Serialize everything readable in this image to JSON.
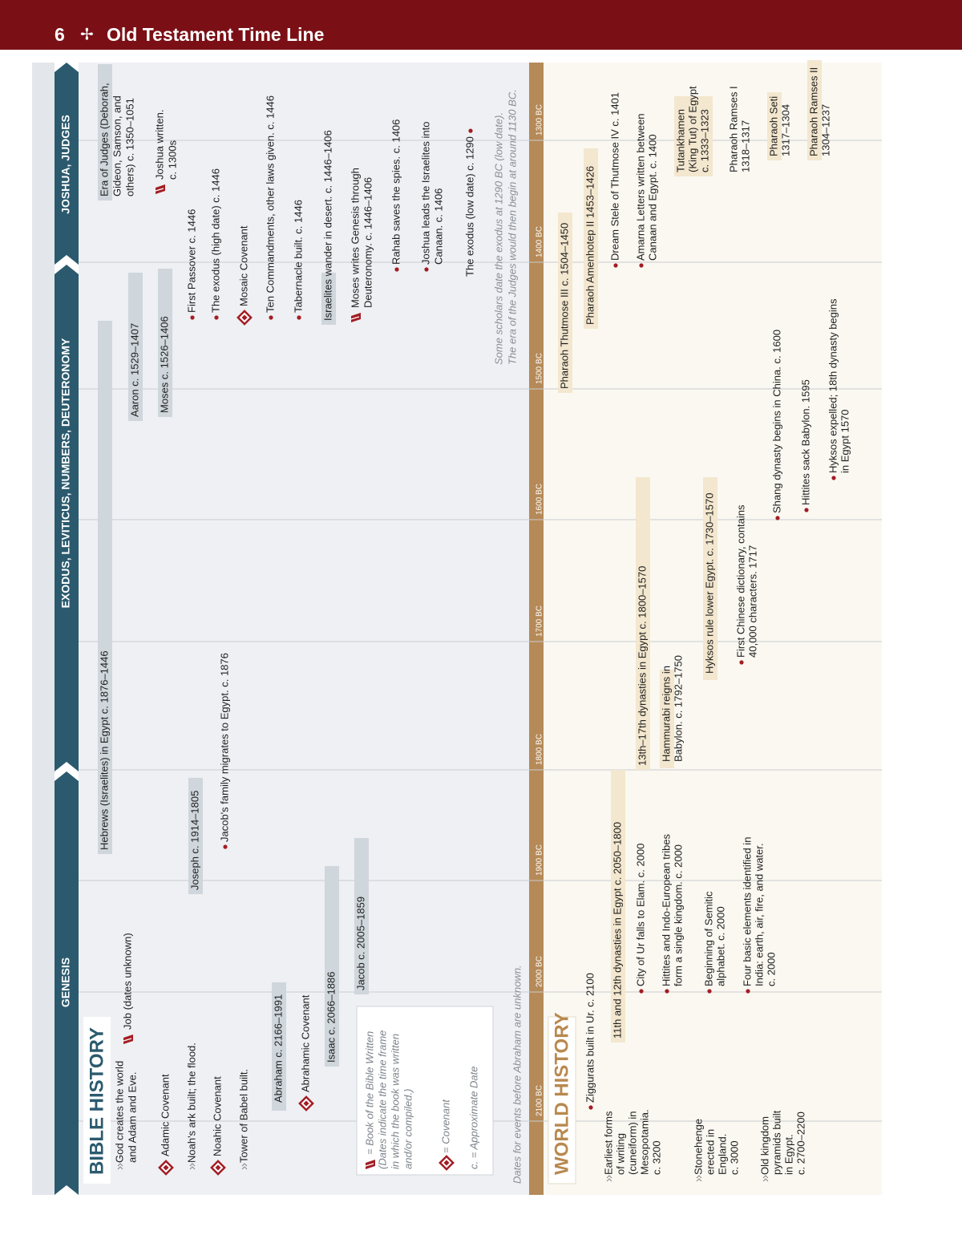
{
  "header": {
    "page": "6",
    "separator": "✢",
    "title": "Old Testament Time Line"
  },
  "books": [
    "GENESIS",
    "EXODUS, LEVITICUS, NUMBERS, DEUTERONOMY",
    "JOSHUA, JUDGES"
  ],
  "axis": [
    "2100 BC",
    "2000 BC",
    "1900 BC",
    "1800 BC",
    "1700 BC",
    "1600 BC",
    "1500 BC",
    "1400 BC",
    "1300 BC"
  ],
  "bible_history": {
    "title": "BIBLE HISTORY",
    "events": [
      {
        "text": [
          "God creates the world",
          "and Adam and Eve."
        ]
      },
      {
        "text": [
          "Adamic Covenant"
        ]
      },
      {
        "text": [
          "Noah's ark built; the flood."
        ]
      },
      {
        "text": [
          "Noahic Covenant"
        ]
      },
      {
        "text": [
          "Tower of Babel built."
        ]
      },
      {
        "text": [
          "Job (dates unknown)"
        ]
      },
      {
        "text": [
          "Abraham c. 2166–1991"
        ]
      },
      {
        "text": [
          "Abrahamic Covenant"
        ]
      },
      {
        "text": [
          "Isaac c. 2066–1886"
        ]
      },
      {
        "text": [
          "Jacob c. 2005–1859"
        ]
      },
      {
        "text": [
          "Joseph c. 1914–1805"
        ]
      },
      {
        "text": [
          "Jacob's family migrates to Egypt. c. 1876"
        ]
      },
      {
        "text": [
          "Hebrews (Israelites) in Egypt c. 1876–1446"
        ]
      },
      {
        "text": [
          "Aaron c. 1529–1407"
        ]
      },
      {
        "text": [
          "Moses c. 1526–1406"
        ]
      },
      {
        "text": [
          "First Passover c. 1446"
        ]
      },
      {
        "text": [
          "The exodus (high date) c. 1446"
        ]
      },
      {
        "text": [
          "Mosaic Covenant"
        ]
      },
      {
        "text": [
          "Ten Commandments, other laws given. c. 1446"
        ]
      },
      {
        "text": [
          "Tabernacle built. c. 1446"
        ]
      },
      {
        "text": [
          "Israelites wander in desert. c. 1446–1406"
        ]
      },
      {
        "text": [
          "Moses writes Genesis through",
          "Deuteronomy. c. 1446–1406"
        ]
      },
      {
        "text": [
          "Rahab saves the spies. c. 1406"
        ]
      },
      {
        "text": [
          "Joshua leads the Israelites into",
          "Canaan. c. 1406"
        ]
      },
      {
        "text": [
          "The exodus (low date) c. 1290"
        ]
      },
      {
        "text": [
          "Era of Judges (Deborah,",
          "Gideon, Samson, and",
          "others) c. 1350–1051"
        ]
      },
      {
        "text": [
          "Joshua written.",
          "c. 1300s"
        ]
      }
    ],
    "legend": {
      "book": [
        "= Book of the Bible Written",
        "(Dates indicate the time frame",
        "in which the book was written",
        "and/or compiled.)"
      ],
      "covenant": "= Covenant",
      "approximate": "c. = Approximate Date"
    },
    "notes": {
      "unknown": "Dates for events before Abraham are unknown.",
      "exodus": [
        "Some scholars date the exodus at 1290 BC (low date).",
        "The era of the Judges would then begin at around 1130 BC."
      ]
    }
  },
  "world_history": {
    "title": "WORLD HISTORY",
    "events": [
      {
        "text": [
          "Earliest forms",
          "of writing",
          "(cuneiform) in",
          "Mesopotamia.",
          "c. 3200"
        ]
      },
      {
        "text": [
          "Stonehenge",
          "erected in",
          "England.",
          "c. 3000"
        ]
      },
      {
        "text": [
          "Old kingdom",
          "pyramids built",
          "in Egypt.",
          "c. 2700–2200"
        ]
      },
      {
        "text": [
          "Ziggurats built in Ur. c. 2100"
        ]
      },
      {
        "text": [
          "11th and 12th dynasties in Egypt c. 2050–1800"
        ]
      },
      {
        "text": [
          "City of Ur falls to Elam. c. 2000"
        ]
      },
      {
        "text": [
          "Hittites and Indo-European tribes",
          "form a single kingdom. c. 2000"
        ]
      },
      {
        "text": [
          "Beginning of Semitic",
          "alphabet. c. 2000"
        ]
      },
      {
        "text": [
          "Four basic elements identified in",
          "India: earth, air, fire, and water.",
          "c. 2000"
        ]
      },
      {
        "text": [
          "13th–17th dynasties in Egypt c. 1800–1570"
        ]
      },
      {
        "text": [
          "Hammurabi reigns in",
          "Babylon. c. 1792–1750"
        ]
      },
      {
        "text": [
          "Hyksos rule lower Egypt. c. 1730–1570"
        ]
      },
      {
        "text": [
          "First Chinese dictionary, contains",
          "40,000 characters. 1717"
        ]
      },
      {
        "text": [
          "Shang dynasty begins in China. c. 1600"
        ]
      },
      {
        "text": [
          "Hittites sack Babylon. 1595"
        ]
      },
      {
        "text": [
          "Hyksos expelled; 18th dynasty begins",
          "in Egypt 1570"
        ]
      },
      {
        "text": [
          "Pharaoh Thutmose III c. 1504–1450"
        ]
      },
      {
        "text": [
          "Pharaoh Amenhotep II 1453–1426"
        ]
      },
      {
        "text": [
          "Dream Stele of Thutmose IV c. 1401"
        ]
      },
      {
        "text": [
          "Amarna Letters written between",
          "Canaan and Egypt. c. 1400"
        ]
      },
      {
        "text": [
          "Tutankhamen",
          "(King Tut) of Egypt",
          "c. 1333–1323"
        ]
      },
      {
        "text": [
          "Pharaoh Ramses I",
          "1318–1317"
        ]
      },
      {
        "text": [
          "Pharaoh Seti",
          "1317–1304"
        ]
      },
      {
        "text": [
          "Pharaoh Ramses II",
          "1304–1237"
        ]
      }
    ]
  }
}
